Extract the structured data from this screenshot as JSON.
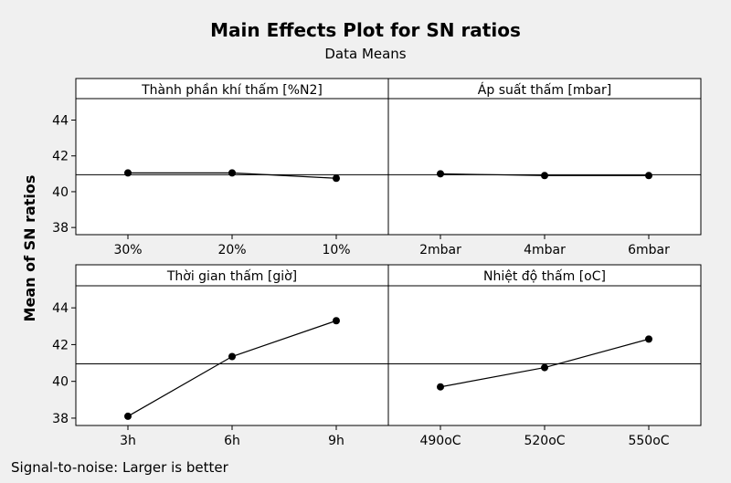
{
  "title": "Main Effects Plot for SN ratios",
  "subtitle": "Data Means",
  "ylabel": "Mean of SN ratios",
  "footnote": "Signal-to-noise: Larger is better",
  "colors": {
    "background": "#f0f0f0",
    "panel": "#ffffff",
    "line": "#000000",
    "reference": "#000000"
  },
  "chart_data": {
    "type": "line",
    "ylim": [
      37.6,
      45.2
    ],
    "yticks": [
      38,
      40,
      42,
      44
    ],
    "reference_line": 40.95,
    "grid": false,
    "panels": [
      {
        "title": "Thành phần khí thấm [%N2]",
        "categories": [
          "30%",
          "20%",
          "10%"
        ],
        "values": [
          41.05,
          41.05,
          40.75
        ]
      },
      {
        "title": "Áp suất thấm [mbar]",
        "categories": [
          "2mbar",
          "4mbar",
          "6mbar"
        ],
        "values": [
          41.0,
          40.9,
          40.9
        ]
      },
      {
        "title": "Thời gian thấm [giờ]",
        "categories": [
          "3h",
          "6h",
          "9h"
        ],
        "values": [
          38.1,
          41.35,
          43.3
        ]
      },
      {
        "title": "Nhiệt độ thấm [oC]",
        "categories": [
          "490oC",
          "520oC",
          "550oC"
        ],
        "values": [
          39.7,
          40.75,
          42.3
        ]
      }
    ]
  }
}
